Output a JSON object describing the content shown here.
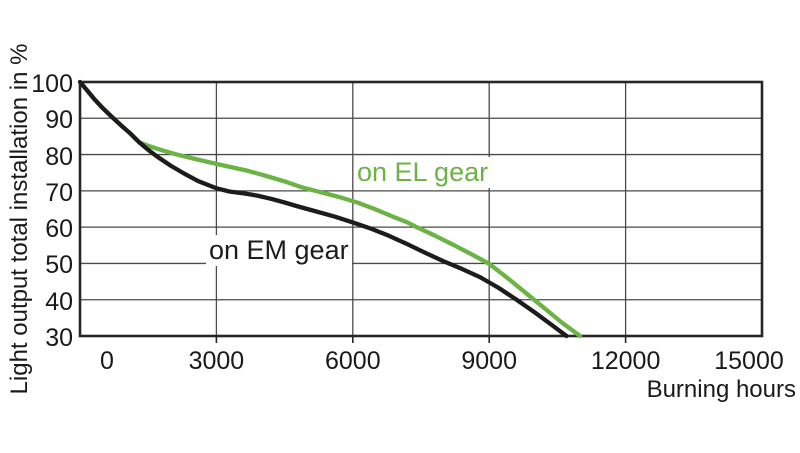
{
  "chart_data": {
    "type": "line",
    "title": "",
    "xlabel": "Burning hours",
    "ylabel": "Light output total installation in %",
    "xlim": [
      0,
      15000
    ],
    "ylim": [
      30,
      100
    ],
    "x_ticks": [
      0,
      3000,
      6000,
      9000,
      12000,
      15000
    ],
    "y_ticks": [
      100,
      90,
      80,
      70,
      60,
      50,
      40,
      30
    ],
    "grid": true,
    "legend_position": "inline-annotations",
    "background_color": "#ffffff",
    "grid_color": "#4a4a4a",
    "axis_color": "#262626",
    "text_color": "#1a1a1a",
    "series": [
      {
        "name": "on EL gear",
        "color": "#6CB345",
        "points": [
          [
            0,
            100
          ],
          [
            150,
            97.8
          ],
          [
            300,
            95.5
          ],
          [
            500,
            92.8
          ],
          [
            700,
            90.4
          ],
          [
            900,
            88.1
          ],
          [
            1100,
            85.9
          ],
          [
            1300,
            83.4
          ],
          [
            1550,
            82.2
          ],
          [
            1800,
            81.2
          ],
          [
            2100,
            80.1
          ],
          [
            2500,
            78.9
          ],
          [
            2900,
            77.7
          ],
          [
            3300,
            76.6
          ],
          [
            3700,
            75.5
          ],
          [
            4100,
            74.1
          ],
          [
            4500,
            72.6
          ],
          [
            4900,
            70.9
          ],
          [
            5300,
            69.6
          ],
          [
            5700,
            68.3
          ],
          [
            6100,
            66.8
          ],
          [
            6500,
            64.9
          ],
          [
            6900,
            62.8
          ],
          [
            7200,
            61.3
          ],
          [
            7400,
            60
          ],
          [
            7800,
            57.7
          ],
          [
            8200,
            55.2
          ],
          [
            8600,
            52.6
          ],
          [
            9000,
            49.9
          ],
          [
            9400,
            46
          ],
          [
            9800,
            41.9
          ],
          [
            10200,
            37.8
          ],
          [
            10600,
            33.7
          ],
          [
            11000,
            30
          ]
        ]
      },
      {
        "name": "on EM gear",
        "color": "#1C1C1C",
        "points": [
          [
            0,
            100
          ],
          [
            150,
            97.8
          ],
          [
            300,
            95.5
          ],
          [
            500,
            92.8
          ],
          [
            700,
            90.4
          ],
          [
            900,
            88.1
          ],
          [
            1100,
            85.9
          ],
          [
            1300,
            83.4
          ],
          [
            1500,
            81.3
          ],
          [
            1700,
            79.4
          ],
          [
            2000,
            76.9
          ],
          [
            2300,
            74.7
          ],
          [
            2600,
            72.7
          ],
          [
            3000,
            70.7
          ],
          [
            3300,
            69.8
          ],
          [
            3600,
            69.3
          ],
          [
            3900,
            68.7
          ],
          [
            4200,
            67.8
          ],
          [
            4500,
            66.8
          ],
          [
            4800,
            65.7
          ],
          [
            5200,
            64.3
          ],
          [
            5600,
            62.9
          ],
          [
            6000,
            61.3
          ],
          [
            6400,
            59.6
          ],
          [
            6800,
            57.6
          ],
          [
            7200,
            55.3
          ],
          [
            7600,
            52.9
          ],
          [
            8000,
            50.6
          ],
          [
            8400,
            48.5
          ],
          [
            8800,
            46.2
          ],
          [
            9200,
            43.3
          ],
          [
            9600,
            40
          ],
          [
            10000,
            36.5
          ],
          [
            10400,
            32.8
          ],
          [
            10700,
            30
          ]
        ]
      }
    ]
  }
}
